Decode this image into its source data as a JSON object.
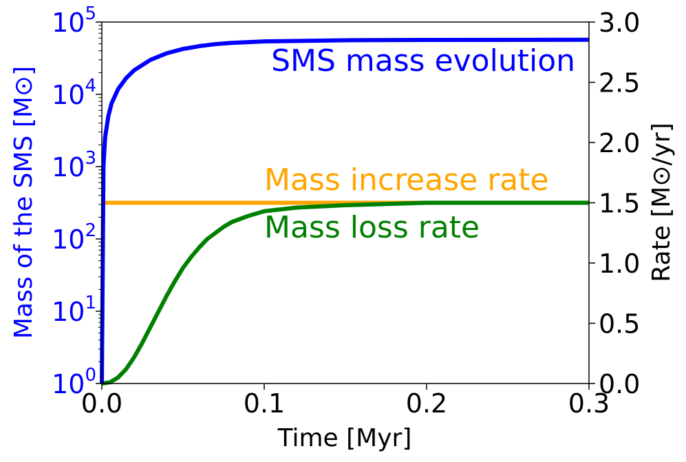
{
  "chart_data": {
    "type": "line",
    "title": "",
    "xlabel": "Time [Myr]",
    "xlim": [
      0,
      0.3
    ],
    "x_ticks": [
      0.0,
      0.1,
      0.2,
      0.3
    ],
    "x_tick_labels": [
      "0.0",
      "0.1",
      "0.2",
      "0.3"
    ],
    "y_left": {
      "label": "Mass of the SMS [M⊙]",
      "scale": "log",
      "lim": [
        1,
        100000
      ],
      "color": "#0000ff",
      "ticks": [
        {
          "base": "10",
          "exp": "0",
          "value": 1
        },
        {
          "base": "10",
          "exp": "1",
          "value": 10
        },
        {
          "base": "10",
          "exp": "2",
          "value": 100
        },
        {
          "base": "10",
          "exp": "3",
          "value": 1000
        },
        {
          "base": "10",
          "exp": "4",
          "value": 10000
        },
        {
          "base": "10",
          "exp": "5",
          "value": 100000
        }
      ]
    },
    "y_right": {
      "label": "Rate [M⊙/yr]",
      "lim": [
        0,
        3.0
      ],
      "ticks": [
        0.0,
        0.5,
        1.0,
        1.5,
        2.0,
        2.5,
        3.0
      ],
      "tick_labels": [
        "0.0",
        "0.5",
        "1.0",
        "1.5",
        "2.0",
        "2.5",
        "3.0"
      ]
    },
    "series": [
      {
        "name": "SMS mass evolution",
        "axis": "left",
        "color": "#0000ff",
        "x": [
          0,
          0.001,
          0.002,
          0.004,
          0.006,
          0.01,
          0.015,
          0.02,
          0.03,
          0.04,
          0.05,
          0.06,
          0.07,
          0.08,
          0.1,
          0.15,
          0.2,
          0.3
        ],
        "y": [
          1,
          1000,
          2500,
          5000,
          7500,
          11800,
          16800,
          21600,
          30000,
          37000,
          42400,
          46400,
          49500,
          51500,
          54000,
          56000,
          56500,
          56800
        ]
      },
      {
        "name": "Mass increase rate",
        "axis": "right",
        "color": "#ffa500",
        "x": [
          0,
          0.3
        ],
        "y": [
          1.5,
          1.5
        ]
      },
      {
        "name": "Mass loss rate",
        "axis": "right",
        "color": "#008000",
        "x": [
          0,
          0.005,
          0.01,
          0.015,
          0.02,
          0.025,
          0.03,
          0.035,
          0.04,
          0.045,
          0.05,
          0.055,
          0.06,
          0.065,
          0.07,
          0.075,
          0.08,
          0.09,
          0.1,
          0.12,
          0.15,
          0.2,
          0.3
        ],
        "y": [
          0,
          0.01,
          0.05,
          0.12,
          0.22,
          0.34,
          0.47,
          0.6,
          0.73,
          0.85,
          0.96,
          1.05,
          1.13,
          1.2,
          1.25,
          1.3,
          1.34,
          1.39,
          1.43,
          1.46,
          1.48,
          1.5,
          1.5
        ]
      }
    ],
    "annotations": [
      {
        "text": "SMS mass evolution",
        "color": "#0000ff"
      },
      {
        "text": "Mass increase rate",
        "color": "#ffa500"
      },
      {
        "text": "Mass loss rate",
        "color": "#008000"
      }
    ]
  }
}
